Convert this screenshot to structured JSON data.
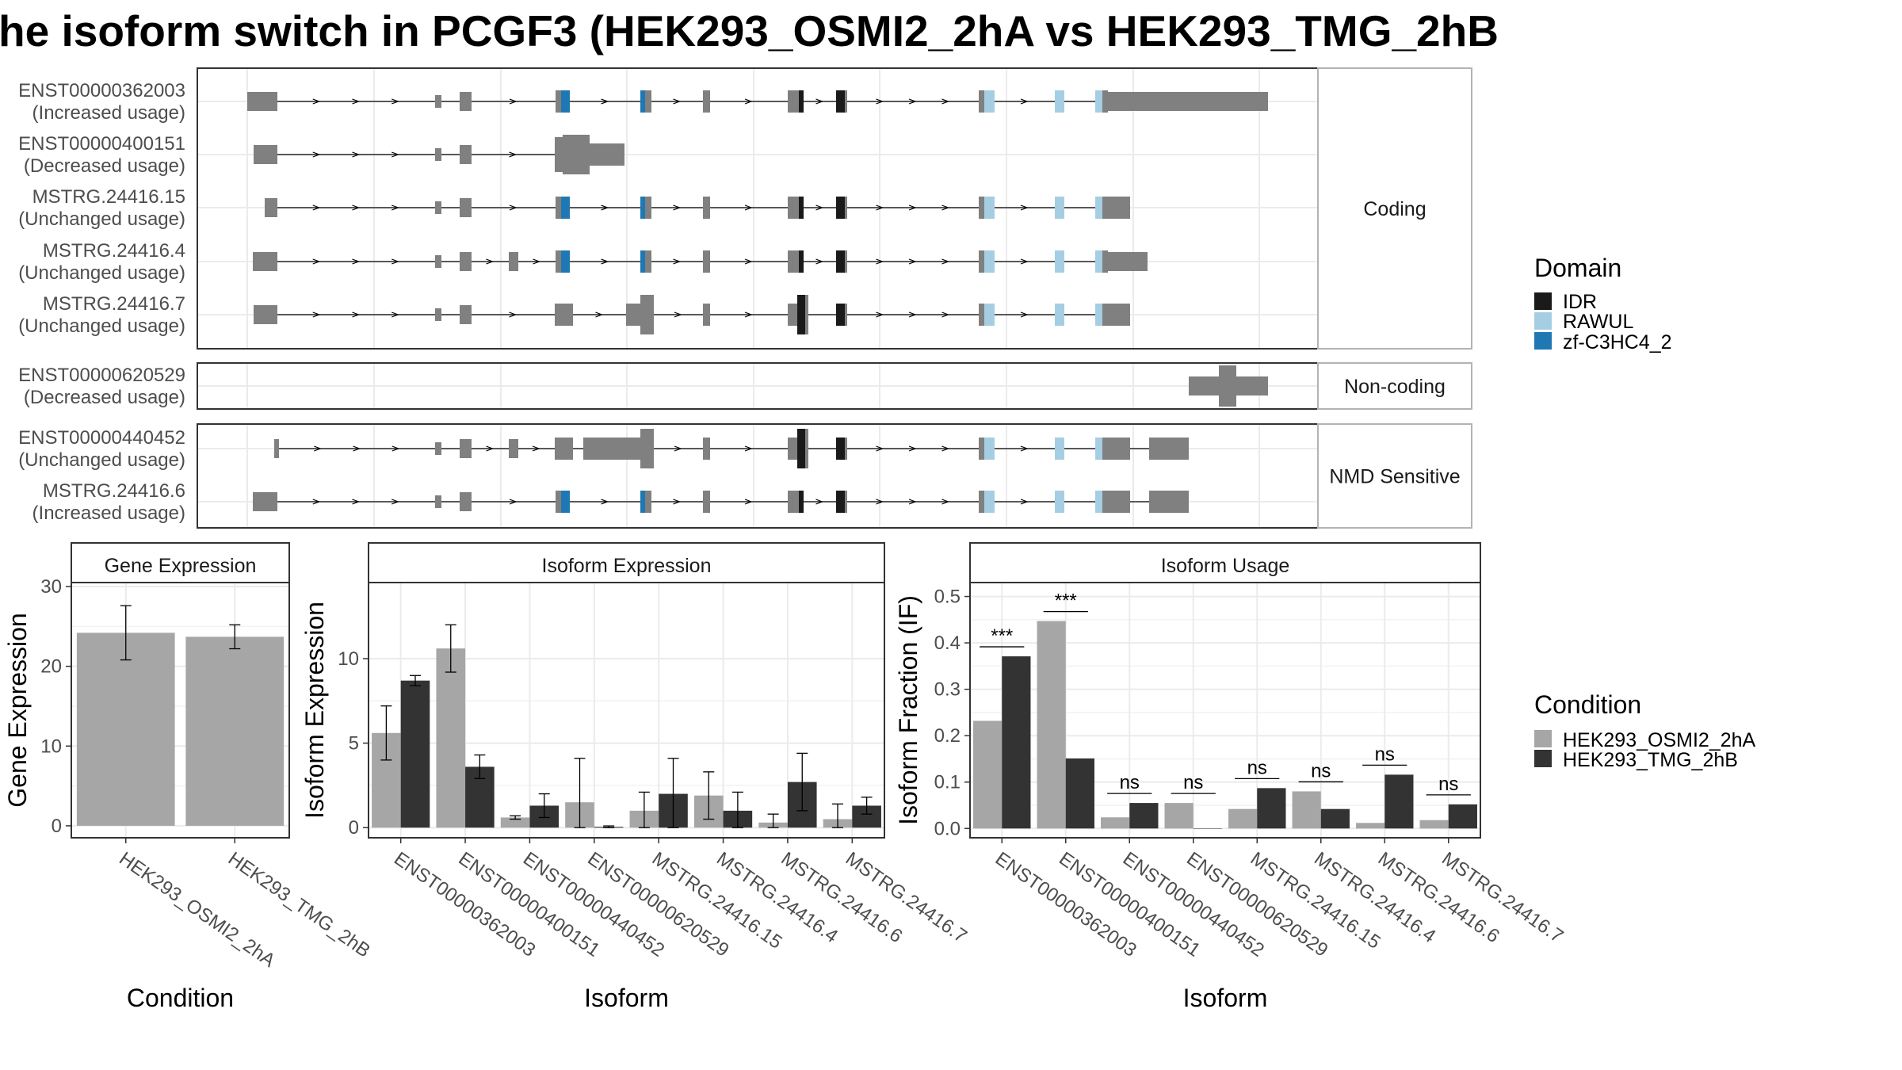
{
  "title": "he isoform switch in PCGF3 (HEK293_OSMI2_2hA vs HEK293_TMG_2hB",
  "colors": {
    "exon": "#808080",
    "IDR": "#1a1a1a",
    "RAWUL": "#a6cee3",
    "zf": "#1f78b4",
    "cond1": "#a6a6a6",
    "cond2": "#333333",
    "panel_border": "#333333",
    "strip_bg": "#ffffff",
    "grid": "#ebebeb"
  },
  "facets": [
    {
      "label": "Coding",
      "isoforms": [
        {
          "name": "ENST00000362003",
          "usage": "(Increased usage)"
        },
        {
          "name": "ENST00000400151",
          "usage": "(Decreased usage)"
        },
        {
          "name": "MSTRG.24416.15",
          "usage": "(Unchanged usage)"
        },
        {
          "name": "MSTRG.24416.4",
          "usage": "(Unchanged usage)"
        },
        {
          "name": "MSTRG.24416.7",
          "usage": "(Unchanged usage)"
        }
      ]
    },
    {
      "label": "Non-coding",
      "isoforms": [
        {
          "name": "ENST00000620529",
          "usage": "(Decreased usage)"
        }
      ]
    },
    {
      "label": "NMD Sensitive",
      "isoforms": [
        {
          "name": "ENST00000440452",
          "usage": "(Unchanged usage)"
        },
        {
          "name": "MSTRG.24416.6",
          "usage": "(Increased usage)"
        }
      ]
    }
  ],
  "domain_legend": {
    "title": "Domain",
    "items": [
      {
        "label": "IDR",
        "color": "#1a1a1a"
      },
      {
        "label": "RAWUL",
        "color": "#a6cee3"
      },
      {
        "label": "zf-C3HC4_2",
        "color": "#1f78b4"
      }
    ]
  },
  "condition_legend": {
    "title": "Condition",
    "items": [
      {
        "label": "HEK293_OSMI2_2hA",
        "color": "#a6a6a6"
      },
      {
        "label": "HEK293_TMG_2hB",
        "color": "#333333"
      }
    ]
  },
  "chart_data": [
    {
      "type": "bar",
      "title": "Gene Expression",
      "xlabel": "Condition",
      "ylabel": "Gene Expression",
      "categories": [
        "HEK293_OSMI2_2hA",
        "HEK293_TMG_2hB"
      ],
      "values": [
        24.2,
        23.7
      ],
      "err_low": [
        20.8,
        22.2
      ],
      "err_high": [
        27.6,
        25.2
      ],
      "ylim": [
        -1.5,
        30.5
      ],
      "yticks": [
        0,
        10,
        20,
        30
      ],
      "grid": true
    },
    {
      "type": "bar",
      "title": "Isoform Expression",
      "xlabel": "Isoform",
      "ylabel": "Isoform Expression",
      "categories": [
        "ENST00000362003",
        "ENST00000400151",
        "ENST00000440452",
        "ENST00000620529",
        "MSTRG.24416.15",
        "MSTRG.24416.4",
        "MSTRG.24416.6",
        "MSTRG.24416.7"
      ],
      "series": [
        {
          "name": "HEK293_OSMI2_2hA",
          "values": [
            5.6,
            10.6,
            0.6,
            1.5,
            1.0,
            1.9,
            0.3,
            0.5
          ],
          "err_low": [
            4.0,
            9.2,
            0.5,
            0.0,
            0.0,
            0.5,
            0.0,
            0.0
          ],
          "err_high": [
            7.2,
            12.0,
            0.7,
            4.1,
            2.1,
            3.3,
            0.8,
            1.4
          ]
        },
        {
          "name": "HEK293_TMG_2hB",
          "values": [
            8.7,
            3.6,
            1.3,
            0.05,
            2.0,
            1.0,
            2.7,
            1.3
          ],
          "err_low": [
            8.4,
            2.9,
            0.6,
            0.0,
            0.0,
            0.0,
            1.0,
            0.8
          ],
          "err_high": [
            9.0,
            4.3,
            2.0,
            0.1,
            4.1,
            2.1,
            4.4,
            1.8
          ]
        }
      ],
      "ylim": [
        -0.6,
        14.5
      ],
      "yticks": [
        0,
        5,
        10
      ],
      "grid": true
    },
    {
      "type": "bar",
      "title": "Isoform Usage",
      "xlabel": "Isoform",
      "ylabel": "Isoform Fraction (IF)",
      "categories": [
        "ENST00000362003",
        "ENST00000400151",
        "ENST00000440452",
        "ENST00000620529",
        "MSTRG.24416.15",
        "MSTRG.24416.4",
        "MSTRG.24416.6",
        "MSTRG.24416.7"
      ],
      "series": [
        {
          "name": "HEK293_OSMI2_2hA",
          "values": [
            0.232,
            0.447,
            0.024,
            0.055,
            0.042,
            0.08,
            0.012,
            0.018
          ]
        },
        {
          "name": "HEK293_TMG_2hB",
          "values": [
            0.371,
            0.151,
            0.055,
            0.0,
            0.087,
            0.042,
            0.116,
            0.052
          ]
        }
      ],
      "significance": [
        "***",
        "***",
        "ns",
        "ns",
        "ns",
        "ns",
        "ns",
        "ns"
      ],
      "ylim": [
        -0.02,
        0.53
      ],
      "yticks": [
        0.0,
        0.1,
        0.2,
        0.3,
        0.4,
        0.5
      ],
      "ytick_labels": [
        "0.0",
        "0.1",
        "0.2",
        "0.3",
        "0.4",
        "0.5"
      ],
      "grid": true
    }
  ]
}
